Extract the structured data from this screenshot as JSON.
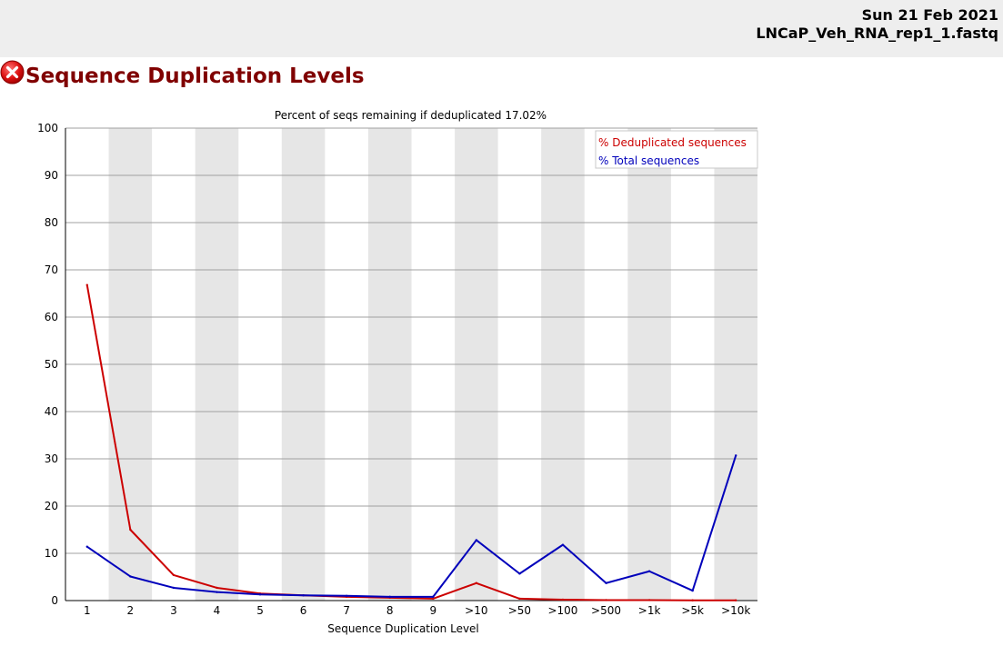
{
  "header": {
    "date": "Sun 21 Feb 2021",
    "filename": "LNCaP_Veh_RNA_rep1_1.fastq"
  },
  "module": {
    "title": "Sequence Duplication Levels",
    "status_icon": "error-x-icon",
    "status": "fail"
  },
  "colors": {
    "deduplicated": "#cc0000",
    "total": "#0000bb",
    "title": "#800000",
    "band": "#e6e6e6"
  },
  "chart_data": {
    "type": "line",
    "title": "Percent of seqs remaining if deduplicated 17.02%",
    "xlabel": "Sequence Duplication Level",
    "ylabel": "",
    "ylim": [
      0,
      100
    ],
    "yticks": [
      0,
      10,
      20,
      30,
      40,
      50,
      60,
      70,
      80,
      90,
      100
    ],
    "grid": true,
    "legend_position": "top-right",
    "categories": [
      "1",
      "2",
      "3",
      "4",
      "5",
      "6",
      "7",
      "8",
      "9",
      ">10",
      ">50",
      ">100",
      ">500",
      ">1k",
      ">5k",
      ">10k"
    ],
    "series": [
      {
        "name": "% Deduplicated sequences",
        "color": "#cc0000",
        "values": [
          66.8,
          15.0,
          5.4,
          2.7,
          1.5,
          1.1,
          0.8,
          0.6,
          0.4,
          3.7,
          0.4,
          0.2,
          0.1,
          0.1,
          0.05,
          0.05
        ]
      },
      {
        "name": "% Total sequences",
        "color": "#0000bb",
        "values": [
          11.4,
          5.1,
          2.7,
          1.8,
          1.3,
          1.1,
          1.0,
          0.8,
          0.8,
          12.8,
          5.7,
          11.8,
          3.7,
          6.2,
          2.1,
          30.7
        ]
      }
    ]
  }
}
